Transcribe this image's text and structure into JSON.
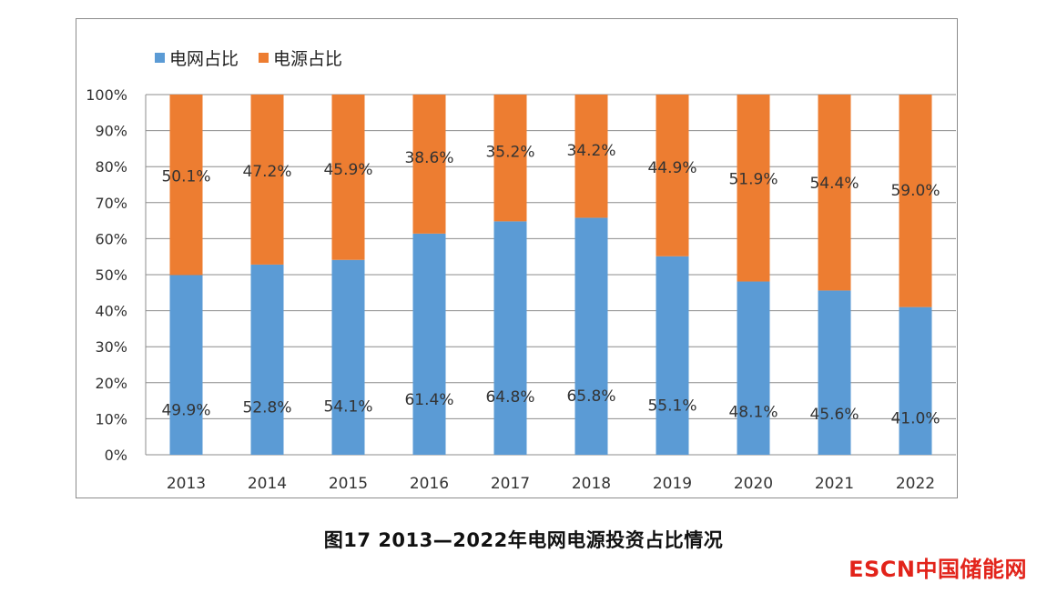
{
  "chart_data": {
    "type": "bar",
    "stacked": true,
    "percent": true,
    "categories": [
      "2013",
      "2014",
      "2015",
      "2016",
      "2017",
      "2018",
      "2019",
      "2020",
      "2021",
      "2022"
    ],
    "series": [
      {
        "name": "电网占比",
        "color": "#5b9bd5",
        "values": [
          49.9,
          52.8,
          54.1,
          61.4,
          64.8,
          65.8,
          55.1,
          48.1,
          45.6,
          41.0
        ],
        "labels": [
          "49.9%",
          "52.8%",
          "54.1%",
          "61.4%",
          "64.8%",
          "65.8%",
          "55.1%",
          "48.1%",
          "45.6%",
          "41.0%"
        ]
      },
      {
        "name": "电源占比",
        "color": "#ed7d31",
        "values": [
          50.1,
          47.2,
          45.9,
          38.6,
          35.2,
          34.2,
          44.9,
          51.9,
          54.4,
          59.0
        ],
        "labels": [
          "50.1%",
          "47.2%",
          "45.9%",
          "38.6%",
          "35.2%",
          "34.2%",
          "44.9%",
          "51.9%",
          "54.4%",
          "59.0%"
        ]
      }
    ],
    "ylim": [
      0,
      100
    ],
    "yticks": [
      "0%",
      "10%",
      "20%",
      "30%",
      "40%",
      "50%",
      "60%",
      "70%",
      "80%",
      "90%",
      "100%"
    ],
    "grid": true,
    "legend_position": "top-left",
    "title": ""
  },
  "caption": "图17  2013—2022年电网电源投资占比情况",
  "watermark": "ESCN中国储能网"
}
